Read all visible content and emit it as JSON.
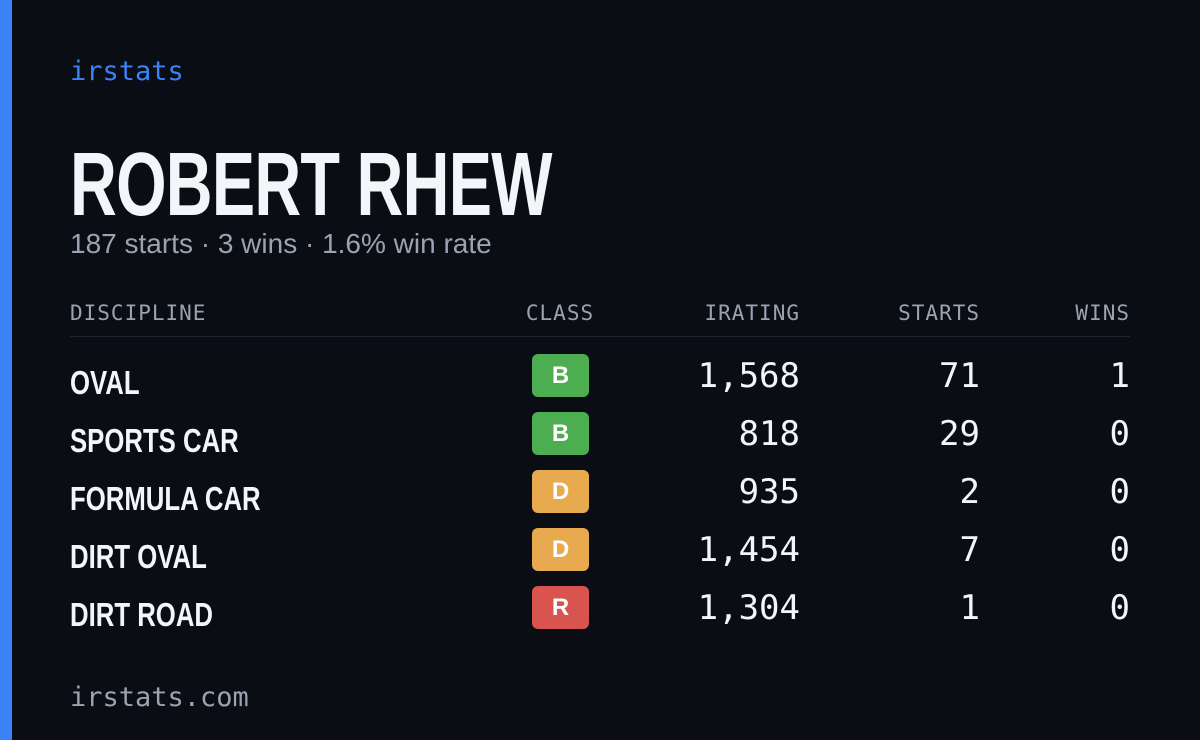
{
  "brand": "irstats",
  "driver": {
    "name": "ROBERT RHEW",
    "summary": "187 starts · 3 wins · 1.6% win rate"
  },
  "table": {
    "headers": [
      "DISCIPLINE",
      "CLASS",
      "IRATING",
      "STARTS",
      "WINS"
    ],
    "rows": [
      {
        "discipline": "OVAL",
        "class": "B",
        "class_color": "#4cae50",
        "irating": "1,568",
        "starts": "71",
        "wins": "1"
      },
      {
        "discipline": "SPORTS CAR",
        "class": "B",
        "class_color": "#4cae50",
        "irating": "818",
        "starts": "29",
        "wins": "0"
      },
      {
        "discipline": "FORMULA CAR",
        "class": "D",
        "class_color": "#e8aa4e",
        "irating": "935",
        "starts": "2",
        "wins": "0"
      },
      {
        "discipline": "DIRT OVAL",
        "class": "D",
        "class_color": "#e8aa4e",
        "irating": "1,454",
        "starts": "7",
        "wins": "0"
      },
      {
        "discipline": "DIRT ROAD",
        "class": "R",
        "class_color": "#d9534f",
        "irating": "1,304",
        "starts": "1",
        "wins": "0"
      }
    ]
  },
  "footer": "irstats.com"
}
